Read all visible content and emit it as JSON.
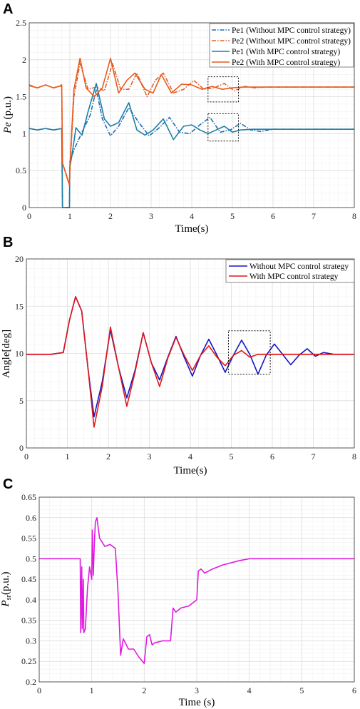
{
  "chart_data": [
    {
      "panel": "A",
      "type": "line",
      "xlabel": "Time(s)",
      "ylabel": "Pe (p.u.)",
      "ylabel_main": "Pe",
      "ylabel_unit": "(p.u.)",
      "xlim": [
        0,
        8
      ],
      "ylim": [
        0,
        2.5
      ],
      "xticks": [
        "0",
        "1",
        "2",
        "3",
        "4",
        "5",
        "6",
        "7",
        "8"
      ],
      "yticks": [
        "0",
        "0.5",
        "1",
        "1.5",
        "2",
        "2.5"
      ],
      "grid": true,
      "legend_position": "top-right",
      "series": [
        {
          "name": "Pe1 (Without MPC control strategy)",
          "color": "#1f6fb5",
          "dash": "dashdot",
          "x": [
            0,
            0.2,
            0.4,
            0.6,
            0.8,
            0.82,
            0.99,
            1.0,
            1.1,
            1.3,
            1.5,
            1.65,
            1.8,
            2.0,
            2.2,
            2.45,
            2.7,
            2.95,
            3.2,
            3.45,
            3.7,
            3.95,
            4.2,
            4.45,
            4.7,
            4.95,
            5.2,
            5.45,
            5.7,
            6.0,
            6.5,
            7.0,
            8.0
          ],
          "y": [
            1.07,
            1.05,
            1.07,
            1.05,
            1.07,
            0,
            0,
            0.62,
            0.78,
            1.02,
            1.25,
            1.6,
            1.2,
            0.97,
            1.1,
            1.35,
            1.15,
            0.97,
            1.08,
            1.22,
            1.02,
            1.0,
            1.12,
            1.22,
            1.02,
            1.05,
            1.14,
            1.05,
            1.03,
            1.06,
            1.06,
            1.06,
            1.06
          ]
        },
        {
          "name": "Pe2 (Without MPC control strategy)",
          "color": "#e0622d",
          "dash": "dashdot",
          "x": [
            0,
            0.2,
            0.4,
            0.6,
            0.8,
            0.82,
            0.99,
            1.0,
            1.1,
            1.25,
            1.45,
            1.65,
            1.85,
            2.05,
            2.25,
            2.45,
            2.65,
            2.9,
            3.1,
            3.3,
            3.55,
            3.8,
            4.05,
            4.3,
            4.55,
            4.8,
            5.05,
            5.3,
            5.55,
            5.8,
            6.1,
            6.5,
            7.0,
            8.0
          ],
          "y": [
            1.66,
            1.62,
            1.66,
            1.62,
            1.66,
            0.6,
            0.32,
            0.5,
            1.5,
            1.95,
            1.6,
            1.63,
            1.58,
            1.95,
            1.6,
            1.6,
            1.82,
            1.5,
            1.72,
            1.82,
            1.55,
            1.6,
            1.72,
            1.6,
            1.62,
            1.68,
            1.58,
            1.64,
            1.62,
            1.63,
            1.63,
            1.63,
            1.63,
            1.63
          ]
        },
        {
          "name": "Pe1 (With MPC control strategy)",
          "color": "#1a7fa8",
          "dash": "solid",
          "x": [
            0,
            0.2,
            0.4,
            0.6,
            0.8,
            0.82,
            0.99,
            1.0,
            1.05,
            1.15,
            1.3,
            1.45,
            1.65,
            1.85,
            2.0,
            2.2,
            2.45,
            2.65,
            2.85,
            3.05,
            3.3,
            3.55,
            3.8,
            4.0,
            4.2,
            4.4,
            4.6,
            4.8,
            5.0,
            5.2,
            5.5,
            6.0,
            8.0
          ],
          "y": [
            1.07,
            1.05,
            1.07,
            1.05,
            1.07,
            0,
            0,
            0.55,
            0.7,
            1.08,
            0.98,
            1.3,
            1.68,
            1.2,
            1.1,
            1.15,
            1.42,
            1.05,
            0.98,
            1.05,
            1.2,
            0.92,
            1.1,
            1.12,
            1.05,
            1.0,
            1.05,
            1.1,
            1.02,
            1.05,
            1.06,
            1.06,
            1.06
          ]
        },
        {
          "name": "Pe2 (With MPC control strategy)",
          "color": "#e85a1c",
          "dash": "solid",
          "x": [
            0,
            0.2,
            0.4,
            0.6,
            0.8,
            0.82,
            0.99,
            1.0,
            1.1,
            1.25,
            1.4,
            1.6,
            1.8,
            2.0,
            2.2,
            2.4,
            2.6,
            2.85,
            3.05,
            3.25,
            3.5,
            3.75,
            4.0,
            4.25,
            4.5,
            4.75,
            5.0,
            5.25,
            5.5,
            6.0,
            8.0
          ],
          "y": [
            1.65,
            1.62,
            1.66,
            1.62,
            1.65,
            0.6,
            0.3,
            0.55,
            1.6,
            2.02,
            1.62,
            1.5,
            1.62,
            2.02,
            1.55,
            1.72,
            1.82,
            1.6,
            1.55,
            1.8,
            1.55,
            1.67,
            1.66,
            1.6,
            1.64,
            1.6,
            1.62,
            1.63,
            1.63,
            1.63,
            1.63
          ]
        }
      ],
      "zoom_boxes": [
        {
          "x": [
            4.4,
            5.15
          ],
          "y": [
            1.43,
            1.77
          ]
        },
        {
          "x": [
            4.4,
            5.15
          ],
          "y": [
            0.9,
            1.27
          ]
        }
      ]
    },
    {
      "panel": "B",
      "type": "line",
      "xlabel": "Time(s)",
      "ylabel": "Angle[deg]",
      "xlim": [
        0,
        8
      ],
      "ylim": [
        0,
        20
      ],
      "xticks": [
        "0",
        "1",
        "2",
        "3",
        "4",
        "5",
        "6",
        "7",
        "8"
      ],
      "yticks": [
        "0",
        "5",
        "10",
        "15",
        "20"
      ],
      "grid": true,
      "legend_position": "top-right",
      "series": [
        {
          "name": "Without MPC control strategy",
          "color": "#1515c8",
          "dash": "solid",
          "x": [
            0,
            0.6,
            0.9,
            1.05,
            1.2,
            1.35,
            1.5,
            1.65,
            1.85,
            2.05,
            2.25,
            2.45,
            2.65,
            2.85,
            3.05,
            3.25,
            3.45,
            3.65,
            3.85,
            4.05,
            4.25,
            4.45,
            4.65,
            4.85,
            5.05,
            5.25,
            5.45,
            5.65,
            5.85,
            6.05,
            6.25,
            6.45,
            6.65,
            6.85,
            7.05,
            7.25,
            7.5,
            8.0
          ],
          "y": [
            9.9,
            9.9,
            10.1,
            13.5,
            16.0,
            14.5,
            8.5,
            3.3,
            7.0,
            12.5,
            8.5,
            5.3,
            8.2,
            12.2,
            9.0,
            7.2,
            9.6,
            11.8,
            9.6,
            7.6,
            9.8,
            11.5,
            9.8,
            8.0,
            9.8,
            11.4,
            9.9,
            7.8,
            9.8,
            11.0,
            9.9,
            8.8,
            9.8,
            10.5,
            9.7,
            10.1,
            9.9,
            9.9
          ]
        },
        {
          "name": "With MPC control strategy",
          "color": "#e01818",
          "dash": "solid",
          "x": [
            0,
            0.6,
            0.9,
            1.05,
            1.2,
            1.35,
            1.5,
            1.65,
            1.85,
            2.05,
            2.25,
            2.45,
            2.65,
            2.85,
            3.05,
            3.25,
            3.45,
            3.65,
            3.85,
            4.05,
            4.25,
            4.45,
            4.65,
            4.85,
            5.05,
            5.25,
            5.45,
            5.65,
            6.0,
            6.5,
            7.0,
            8.0
          ],
          "y": [
            9.9,
            9.9,
            10.1,
            13.5,
            16.0,
            14.5,
            8.5,
            2.2,
            6.5,
            12.8,
            8.5,
            4.4,
            8.0,
            12.2,
            9.0,
            6.5,
            9.5,
            11.7,
            9.8,
            8.2,
            9.8,
            10.8,
            9.6,
            8.7,
            9.8,
            10.3,
            9.6,
            9.9,
            9.9,
            9.9,
            9.9,
            9.9
          ]
        }
      ],
      "zoom_boxes": [
        {
          "x": [
            4.93,
            5.95
          ],
          "y": [
            7.8,
            12.4
          ]
        }
      ]
    },
    {
      "panel": "C",
      "type": "line",
      "xlabel": "Time (s)",
      "ylabel": "Psr(p.u.)",
      "ylabel_main": "P",
      "ylabel_sub": "sr",
      "ylabel_unit": "(p.u.)",
      "xlim": [
        0,
        6
      ],
      "ylim": [
        0.2,
        0.65
      ],
      "xticks": [
        "0",
        "1",
        "2",
        "3",
        "4",
        "5",
        "6"
      ],
      "yticks": [
        "0.2",
        "0.25",
        "0.3",
        "0.35",
        "0.4",
        "0.45",
        "0.5",
        "0.55",
        "0.6",
        "0.65"
      ],
      "grid": true,
      "series": [
        {
          "name": "",
          "color": "#e01ae0",
          "dash": "solid",
          "x": [
            0,
            0.78,
            0.79,
            0.81,
            0.82,
            0.84,
            0.85,
            0.88,
            0.92,
            0.96,
            1.0,
            1.01,
            1.03,
            1.05,
            1.07,
            1.1,
            1.15,
            1.25,
            1.35,
            1.45,
            1.5,
            1.55,
            1.6,
            1.7,
            1.8,
            1.9,
            2.0,
            2.05,
            2.1,
            2.15,
            2.2,
            2.35,
            2.5,
            2.55,
            2.6,
            2.7,
            2.85,
            3.0,
            3.03,
            3.08,
            3.15,
            3.3,
            3.5,
            3.8,
            4.0,
            4.5,
            5.0,
            6.0
          ],
          "y": [
            0.5,
            0.5,
            0.32,
            0.48,
            0.33,
            0.45,
            0.32,
            0.33,
            0.43,
            0.48,
            0.45,
            0.57,
            0.46,
            0.54,
            0.59,
            0.6,
            0.55,
            0.53,
            0.535,
            0.525,
            0.42,
            0.265,
            0.305,
            0.28,
            0.28,
            0.26,
            0.245,
            0.31,
            0.315,
            0.29,
            0.295,
            0.3,
            0.3,
            0.38,
            0.37,
            0.38,
            0.385,
            0.4,
            0.47,
            0.475,
            0.465,
            0.475,
            0.485,
            0.495,
            0.5,
            0.5,
            0.5,
            0.5
          ]
        }
      ]
    }
  ]
}
